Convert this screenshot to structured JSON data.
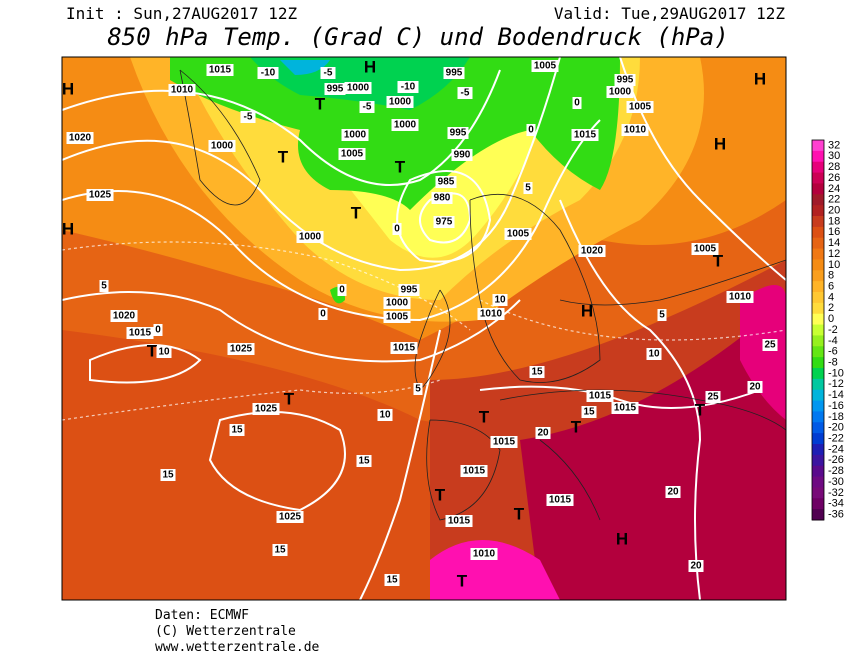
{
  "header": {
    "init": "Init : Sun,27AUG2017 12Z",
    "valid": "Valid: Tue,29AUG2017 12Z",
    "title": "850 hPa Temp. (Grad C) und Bodendruck (hPa)"
  },
  "colorbar": {
    "levels": [
      32,
      30,
      28,
      26,
      24,
      22,
      20,
      18,
      16,
      14,
      12,
      10,
      8,
      6,
      4,
      2,
      0,
      -2,
      -4,
      -6,
      -8,
      -10,
      -12,
      -14,
      -16,
      -18,
      -20,
      -22,
      -24,
      -26,
      -28,
      -30,
      -32,
      -34,
      -36
    ],
    "colors": [
      "#ff40d0",
      "#ff10b0",
      "#e6007a",
      "#cc0055",
      "#b3003d",
      "#a01a2a",
      "#b22222",
      "#c83c1e",
      "#dc5014",
      "#e66414",
      "#f07814",
      "#f58c14",
      "#fa9f1e",
      "#ffb428",
      "#ffc832",
      "#ffdc3c",
      "#ffff55",
      "#c8ff32",
      "#96f01e",
      "#64e614",
      "#32dc14",
      "#00d250",
      "#00c8a0",
      "#00b4dc",
      "#0096f0",
      "#0078f0",
      "#005ae6",
      "#003cd2",
      "#1e1eb4",
      "#3c14a0",
      "#5a0a8c",
      "#6e0a82",
      "#780a78",
      "#6e0064",
      "#500050"
    ]
  },
  "map_labels": [
    "1015",
    "-10",
    "-5",
    "H",
    "995",
    "1005",
    "995",
    "1010",
    "995",
    "1000",
    "-10",
    "1000",
    "-5",
    "1000",
    "H",
    "-5",
    "T",
    "-5",
    "1000",
    "0",
    "1005",
    "H",
    "1000",
    "995",
    "0",
    "1015",
    "1010",
    "1020",
    "1000",
    "T",
    "1005",
    "990",
    "T",
    "H",
    "985",
    "5",
    "1025",
    "980",
    "T",
    "975",
    "1000",
    "0",
    "1005",
    "1020",
    "1005",
    "T",
    "H",
    "5",
    "0",
    "995",
    "1000",
    "10",
    "1010",
    "0",
    "1005",
    "1010",
    "H",
    "5",
    "1020",
    "1015",
    "0",
    "T",
    "10",
    "1025",
    "1015",
    "10",
    "25",
    "15",
    "5",
    "1015",
    "25",
    "20",
    "T",
    "1025",
    "1015",
    "T",
    "15",
    "10",
    "T",
    "15",
    "T",
    "20",
    "1015",
    "15",
    "15",
    "1015",
    "20",
    "T",
    "1015",
    "T",
    "1025",
    "1015",
    "H",
    "15",
    "1010",
    "T",
    "20",
    "15"
  ],
  "footer": {
    "source": "Daten: ECMWF",
    "copyright": "(C) Wetterzentrale",
    "url": "www.wetterzentrale.de"
  }
}
